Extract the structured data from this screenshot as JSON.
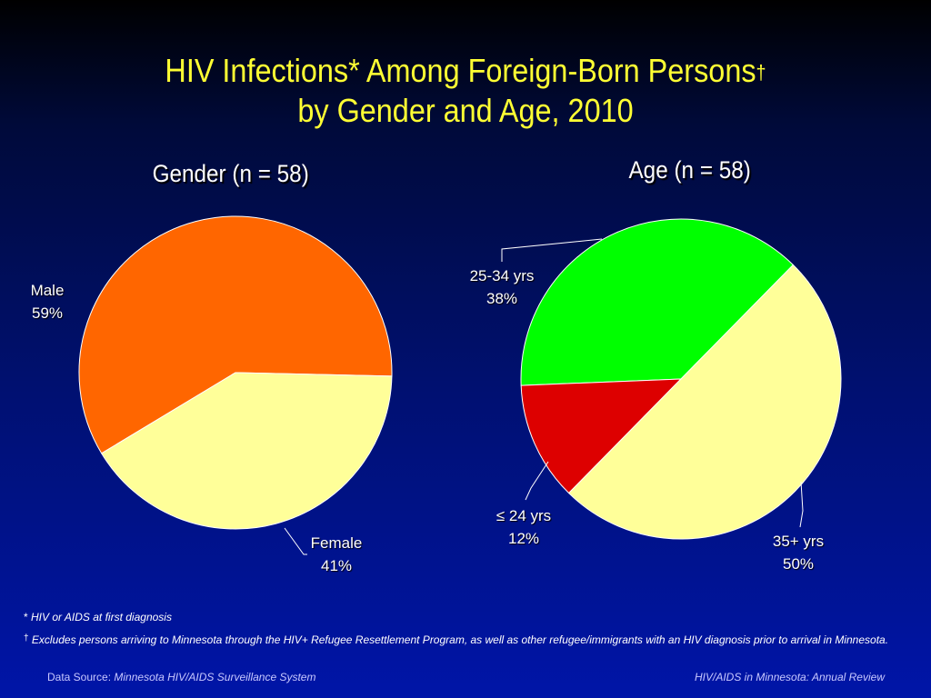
{
  "slide": {
    "title_line1": "HIV Infections* Among Foreign-Born Persons",
    "title_dagger": "†",
    "title_line2": "by Gender and Age, 2010"
  },
  "colors": {
    "male": "#ff6600",
    "female": "#ffff99",
    "age_25_34": "#00ff00",
    "age_le_24": "#dd0000",
    "age_35_plus": "#ffff99",
    "title": "#ffff33"
  },
  "chart_data": [
    {
      "type": "pie",
      "title": "Gender (n = 58)",
      "slices": [
        {
          "label": "Male",
          "value": 59,
          "value_label": "59%",
          "color": "#ff6600"
        },
        {
          "label": "Female",
          "value": 41,
          "value_label": "41%",
          "color": "#ffff99"
        }
      ]
    },
    {
      "type": "pie",
      "title": "Age (n = 58)",
      "slices": [
        {
          "label": "25-34 yrs",
          "value": 38,
          "value_label": "38%",
          "color": "#00ff00"
        },
        {
          "label": "≤ 24 yrs",
          "value": 12,
          "value_label": "12%",
          "color": "#dd0000"
        },
        {
          "label": "35+ yrs",
          "value": 50,
          "value_label": "50%",
          "color": "#ffff99"
        }
      ]
    }
  ],
  "footnotes": {
    "asterisk_mark": "*",
    "asterisk_text": "HIV or AIDS at first diagnosis",
    "dagger_mark": "†",
    "dagger_text": "Excludes persons arriving to Minnesota through the HIV+ Refugee Resettlement Program, as well as other refugee/immigrants with an HIV diagnosis prior to arrival in Minnesota."
  },
  "footer": {
    "source_prefix": "Data Source:",
    "source_name": "Minnesota HIV/AIDS Surveillance System",
    "report": "HIV/AIDS in Minnesota: Annual Review"
  }
}
